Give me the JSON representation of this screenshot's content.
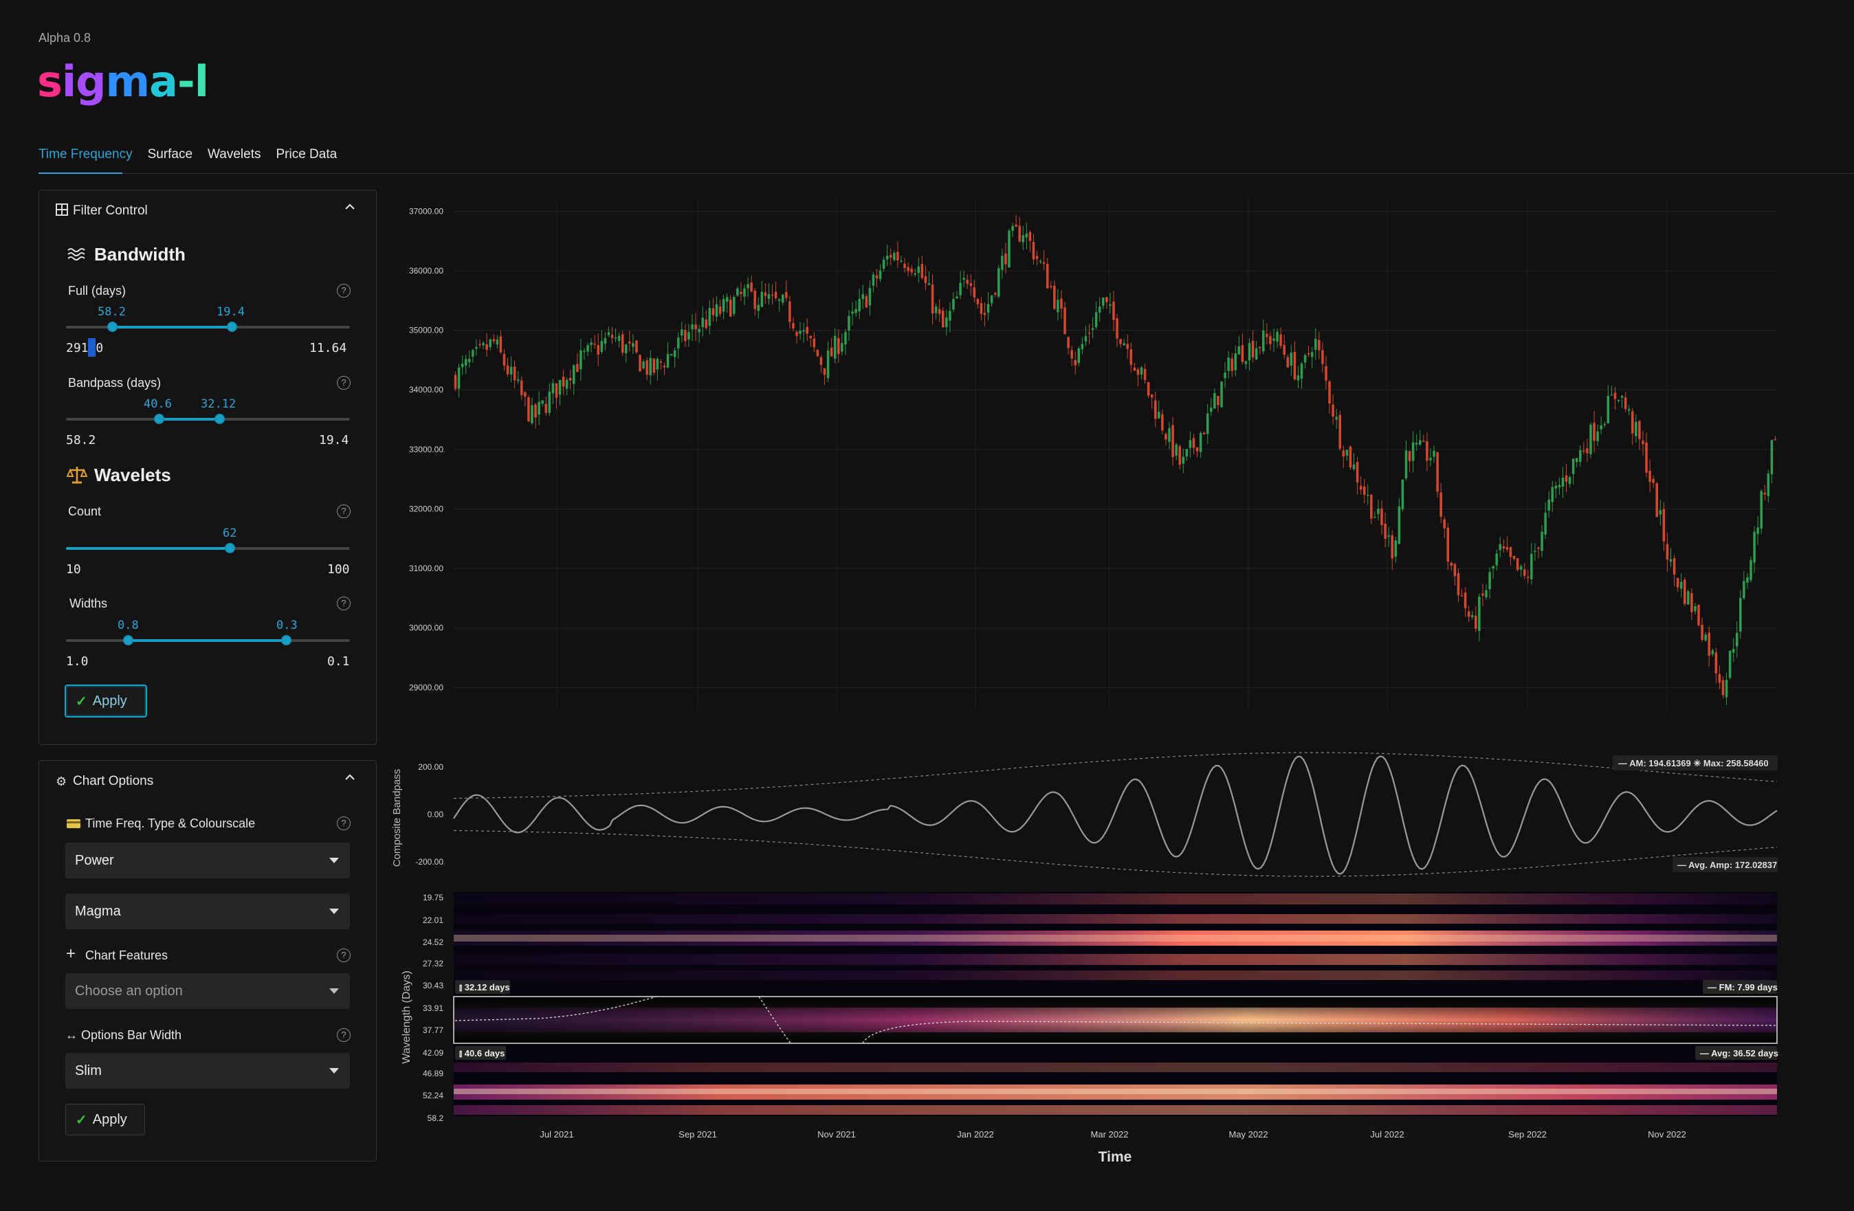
{
  "header": {
    "version": "Alpha 0.8",
    "logo": "sigma-l"
  },
  "tabs": [
    {
      "label": "Time Frequency",
      "active": true
    },
    {
      "label": "Surface"
    },
    {
      "label": "Wavelets"
    },
    {
      "label": "Price Data"
    }
  ],
  "filter_control": {
    "title": "Filter Control",
    "bandwidth": {
      "title": "Bandwidth",
      "full": {
        "label": "Full (days)",
        "low": "58.2",
        "high": "19.4",
        "min": "291.0",
        "max": "11.64"
      },
      "bandpass": {
        "label": "Bandpass (days)",
        "low": "40.6",
        "high": "32.12",
        "min": "58.2",
        "max": "19.4"
      }
    },
    "wavelets": {
      "title": "Wavelets",
      "count": {
        "label": "Count",
        "value": "62",
        "min": "10",
        "max": "100"
      },
      "widths": {
        "label": "Widths",
        "low": "0.8",
        "high": "0.3",
        "min": "1.0",
        "max": "0.1"
      }
    },
    "apply_label": "Apply"
  },
  "chart_options": {
    "title": "Chart Options",
    "tf_type": {
      "label": "Time Freq. Type & Colourscale",
      "type_value": "Power",
      "colourscale_value": "Magma"
    },
    "features": {
      "label": "Chart Features",
      "placeholder": "Choose an option"
    },
    "bar_width": {
      "label": "Options Bar Width",
      "value": "Slim"
    },
    "apply_label": "Apply"
  },
  "colors": {
    "accent": "#1a9fc4",
    "up": "#2e9d4f",
    "down": "#d5472f",
    "background": "#111111"
  },
  "chart_data": [
    {
      "type": "candlestick",
      "title": "",
      "y_ticks": [
        "37000.00",
        "36000.00",
        "35000.00",
        "34000.00",
        "33000.00",
        "32000.00",
        "31000.00",
        "30000.00",
        "29000.00"
      ],
      "ylim": [
        28600,
        37200
      ],
      "x_ticks": [
        "Jul 2021",
        "Sep 2021",
        "Nov 2021",
        "Jan 2022",
        "Mar 2022",
        "May 2022",
        "Jul 2022",
        "Sep 2022",
        "Nov 2022"
      ],
      "close_path": [
        [
          0,
          34200
        ],
        [
          0.03,
          34800
        ],
        [
          0.06,
          33500
        ],
        [
          0.09,
          34400
        ],
        [
          0.12,
          34900
        ],
        [
          0.15,
          34300
        ],
        [
          0.18,
          35000
        ],
        [
          0.22,
          35600
        ],
        [
          0.25,
          35400
        ],
        [
          0.28,
          34400
        ],
        [
          0.31,
          35500
        ],
        [
          0.33,
          36300
        ],
        [
          0.35,
          36100
        ],
        [
          0.37,
          35000
        ],
        [
          0.39,
          36000
        ],
        [
          0.4,
          35200
        ],
        [
          0.42,
          36500
        ],
        [
          0.43,
          36700
        ],
        [
          0.45,
          35800
        ],
        [
          0.47,
          34500
        ],
        [
          0.49,
          35500
        ],
        [
          0.51,
          34700
        ],
        [
          0.53,
          33700
        ],
        [
          0.55,
          32700
        ],
        [
          0.57,
          33500
        ],
        [
          0.59,
          34600
        ],
        [
          0.62,
          34900
        ],
        [
          0.64,
          34200
        ],
        [
          0.65,
          34900
        ],
        [
          0.67,
          33200
        ],
        [
          0.69,
          32200
        ],
        [
          0.71,
          31300
        ],
        [
          0.72,
          33000
        ],
        [
          0.74,
          32900
        ],
        [
          0.75,
          31300
        ],
        [
          0.77,
          30000
        ],
        [
          0.79,
          31300
        ],
        [
          0.81,
          30800
        ],
        [
          0.83,
          32200
        ],
        [
          0.85,
          32900
        ],
        [
          0.88,
          34000
        ],
        [
          0.9,
          32900
        ],
        [
          0.92,
          31000
        ],
        [
          0.94,
          30200
        ],
        [
          0.96,
          29000
        ],
        [
          0.97,
          30100
        ],
        [
          0.99,
          32300
        ],
        [
          1.01,
          33500
        ],
        [
          1.03,
          34300
        ],
        [
          1.06,
          34300
        ],
        [
          1.08,
          34100
        ],
        [
          1.0,
          33500
        ]
      ]
    },
    {
      "type": "line",
      "ylabel": "Composite Bandpass",
      "y_ticks": [
        "200.00",
        "0.00",
        "-200.00"
      ],
      "ylim": [
        -260,
        260
      ],
      "am_label": "AM: 194.61369",
      "max_label": "Max: 258.58460",
      "avg_amp_label": "Avg. Amp: 172.02837"
    },
    {
      "type": "heatmap",
      "xlabel": "Time",
      "ylabel": "Wavelength (Days)",
      "y_ticks": [
        "19.75",
        "22.01",
        "24.52",
        "27.32",
        "30.43",
        "33.91",
        "37.77",
        "42.09",
        "46.89",
        "52.24",
        "58.2"
      ],
      "band_top_label": "32.12 days",
      "band_bottom_label": "40.6 days",
      "fm_label": "FM: 7.99 days",
      "avg_label": "Avg: 36.52 days"
    }
  ]
}
